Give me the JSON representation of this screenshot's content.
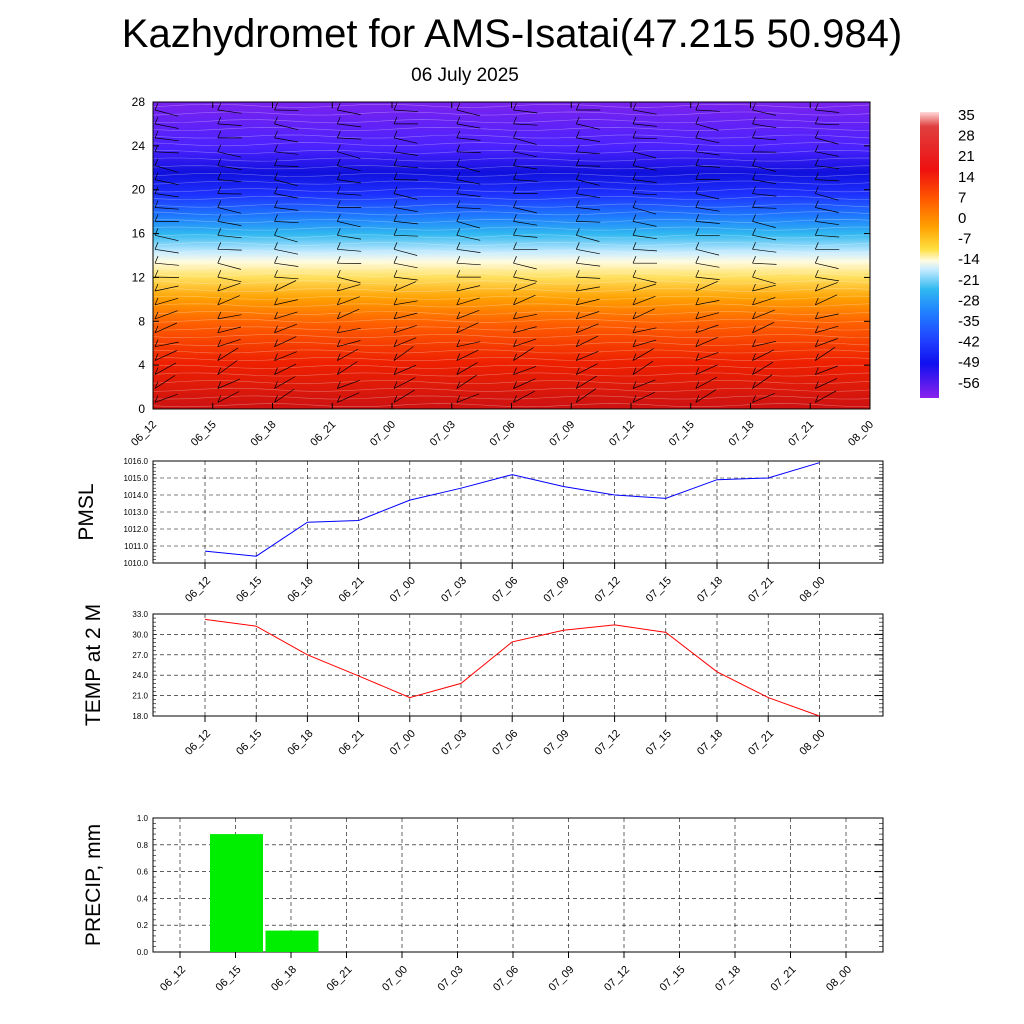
{
  "title": "Kazhydromet for AMS-Isatai(47.215 50.984)",
  "subtitle": "06 July 2025",
  "time_labels": [
    "06_12",
    "06_15",
    "06_18",
    "06_21",
    "07_00",
    "07_03",
    "07_06",
    "07_09",
    "07_12",
    "07_15",
    "07_18",
    "07_21",
    "08_00"
  ],
  "colors": {
    "pmsl_line": "#0000ff",
    "temp_line": "#ff0000",
    "precip_bar": "#00ee00",
    "grid": "#000000"
  },
  "chart_data": [
    {
      "type": "heatmap",
      "title": "",
      "xlabel": "",
      "ylabel": "",
      "x": [
        "06_12",
        "06_15",
        "06_18",
        "06_21",
        "07_00",
        "07_03",
        "07_06",
        "07_09",
        "07_12",
        "07_15",
        "07_18",
        "07_21",
        "08_00"
      ],
      "ylim": [
        0,
        28
      ],
      "y_ticks": [
        0,
        4,
        8,
        12,
        16,
        20,
        24,
        28
      ],
      "overlay": "wind barbs",
      "colorbar": {
        "labels": [
          "35",
          "28",
          "21",
          "14",
          "7",
          "0",
          "-7",
          "-14",
          "-21",
          "-28",
          "-35",
          "-42",
          "-49",
          "-56"
        ],
        "range": [
          -60,
          38
        ]
      },
      "temperature_profile": [
        {
          "height": 0,
          "value": 30
        },
        {
          "height": 2,
          "value": 28
        },
        {
          "height": 4,
          "value": 24
        },
        {
          "height": 8,
          "value": 10
        },
        {
          "height": 12,
          "value": -3
        },
        {
          "height": 14,
          "value": -14
        },
        {
          "height": 16,
          "value": -28
        },
        {
          "height": 20,
          "value": -48
        },
        {
          "height": 22,
          "value": -58
        },
        {
          "height": 24,
          "value": -55
        },
        {
          "height": 28,
          "value": -57
        }
      ]
    },
    {
      "type": "line",
      "title": "",
      "xlabel": "",
      "ylabel": "PMSL",
      "x": [
        "06_12",
        "06_15",
        "06_18",
        "06_21",
        "07_00",
        "07_03",
        "07_06",
        "07_09",
        "07_12",
        "07_15",
        "07_18",
        "07_21",
        "08_00"
      ],
      "ylim": [
        1010.0,
        1016.0
      ],
      "y_ticks": [
        "1010.0",
        "1011.0",
        "1012.0",
        "1013.0",
        "1014.0",
        "1015.0",
        "1016.0"
      ],
      "grid": true,
      "series": [
        {
          "values": [
            1010.7,
            1010.4,
            1012.4,
            1012.5,
            1013.7,
            1014.4,
            1015.2,
            1014.5,
            1014.0,
            1013.8,
            1014.9,
            1015.0,
            1015.9
          ]
        }
      ]
    },
    {
      "type": "line",
      "title": "",
      "xlabel": "",
      "ylabel": "TEMP at 2 M",
      "x": [
        "06_12",
        "06_15",
        "06_18",
        "06_21",
        "07_00",
        "07_03",
        "07_06",
        "07_09",
        "07_12",
        "07_15",
        "07_18",
        "07_21",
        "08_00"
      ],
      "ylim": [
        18.0,
        33.0
      ],
      "y_ticks": [
        "18.0",
        "21.0",
        "24.0",
        "27.0",
        "30.0",
        "33.0"
      ],
      "grid": true,
      "series": [
        {
          "values": [
            32.2,
            31.2,
            27.0,
            23.9,
            20.7,
            22.8,
            28.9,
            30.6,
            31.4,
            30.3,
            24.5,
            20.7,
            18.0
          ]
        }
      ]
    },
    {
      "type": "bar",
      "title": "",
      "xlabel": "",
      "ylabel": "PRECIP, mm",
      "categories": [
        "06_12",
        "06_15",
        "06_18",
        "06_21",
        "07_00",
        "07_03",
        "07_06",
        "07_09",
        "07_12",
        "07_15",
        "07_18",
        "07_21",
        "08_00"
      ],
      "ylim": [
        0.0,
        1.0
      ],
      "y_ticks": [
        "0.0",
        "0.2",
        "0.4",
        "0.6",
        "0.8",
        "1.0"
      ],
      "grid": true,
      "values": [
        0,
        0.88,
        0.16,
        0,
        0,
        0,
        0,
        0,
        0,
        0,
        0,
        0,
        0
      ]
    }
  ]
}
